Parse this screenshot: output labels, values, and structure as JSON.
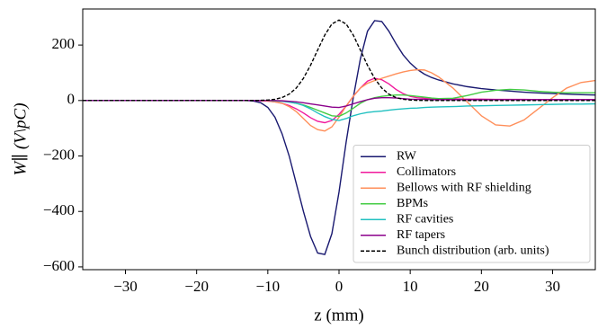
{
  "chart_data": {
    "type": "line",
    "x_label": "z (mm)",
    "y_label": "W∥ (V\\pC)",
    "x": [
      -36,
      -30,
      -20,
      -15,
      -13,
      -12,
      -11,
      -10,
      -9,
      -8,
      -7,
      -6,
      -5,
      -4,
      -3,
      -2,
      -1,
      0,
      1,
      2,
      3,
      4,
      5,
      6,
      7,
      8,
      9,
      10,
      11,
      12,
      13,
      14,
      16,
      18,
      20,
      22,
      24,
      26,
      28,
      30,
      32,
      34,
      36
    ],
    "series": [
      {
        "name": "RW",
        "color": "#191970",
        "values": [
          0,
          0,
          0,
          0,
          0,
          -2,
          -8,
          -25,
          -60,
          -120,
          -200,
          -300,
          -400,
          -490,
          -550,
          -555,
          -480,
          -330,
          -150,
          10,
          150,
          250,
          288,
          285,
          250,
          205,
          165,
          135,
          112,
          95,
          83,
          74,
          60,
          50,
          43,
          38,
          34,
          30,
          27,
          25,
          23,
          21,
          20
        ]
      },
      {
        "name": "Collimators",
        "color": "#f0199c",
        "values": [
          0,
          0,
          0,
          0,
          0,
          0,
          -1,
          -2,
          -5,
          -10,
          -18,
          -30,
          -45,
          -62,
          -75,
          -80,
          -72,
          -50,
          -20,
          15,
          45,
          70,
          80,
          75,
          60,
          40,
          25,
          15,
          10,
          8,
          7,
          7,
          6,
          5,
          5,
          4,
          4,
          4,
          3,
          3,
          3,
          3,
          3
        ]
      },
      {
        "name": "Bellows with RF shielding",
        "color": "#ff8f5a",
        "values": [
          0,
          0,
          0,
          0,
          0,
          0,
          0,
          -2,
          -5,
          -10,
          -22,
          -40,
          -65,
          -90,
          -105,
          -110,
          -95,
          -60,
          -20,
          15,
          45,
          62,
          72,
          80,
          88,
          96,
          103,
          108,
          111,
          110,
          100,
          85,
          45,
          -5,
          -55,
          -88,
          -92,
          -70,
          -30,
          10,
          45,
          65,
          72
        ]
      },
      {
        "name": "BPMs",
        "color": "#44cc44",
        "values": [
          0,
          0,
          0,
          0,
          0,
          0,
          0,
          0,
          -1,
          -3,
          -5,
          -10,
          -16,
          -25,
          -35,
          -45,
          -55,
          -57,
          -45,
          -28,
          -10,
          3,
          10,
          15,
          18,
          20,
          20,
          18,
          15,
          12,
          9,
          7,
          8,
          18,
          30,
          37,
          40,
          38,
          33,
          30,
          28,
          28,
          28
        ]
      },
      {
        "name": "RF cavities",
        "color": "#20c0c0",
        "values": [
          0,
          0,
          0,
          0,
          0,
          0,
          0,
          0,
          -1,
          -3,
          -6,
          -10,
          -18,
          -30,
          -45,
          -58,
          -68,
          -72,
          -65,
          -55,
          -48,
          -43,
          -40,
          -38,
          -35,
          -32,
          -30,
          -28,
          -27,
          -25,
          -24,
          -23,
          -22,
          -20,
          -19,
          -18,
          -17,
          -16,
          -15,
          -14,
          -13,
          -13,
          -12
        ]
      },
      {
        "name": "RF tapers",
        "color": "#8b008b",
        "values": [
          0,
          0,
          0,
          0,
          0,
          0,
          0,
          0,
          0,
          -1,
          -3,
          -5,
          -8,
          -12,
          -16,
          -20,
          -24,
          -25,
          -20,
          -12,
          -4,
          3,
          8,
          10,
          10,
          9,
          7,
          5,
          4,
          4,
          3,
          3,
          3,
          3,
          3,
          3,
          3,
          3,
          3,
          3,
          3,
          3,
          3
        ]
      },
      {
        "name": "Bunch distribution (arb. units)",
        "color": "#000000",
        "linestyle": "dashed",
        "values": [
          0,
          0,
          0,
          0,
          0,
          0.2,
          0.6,
          1.7,
          4.4,
          10.7,
          23,
          45,
          80,
          127,
          182,
          236,
          276,
          290,
          276,
          236,
          182,
          127,
          80,
          45,
          23,
          10.7,
          4.4,
          1.7,
          0.6,
          0.2,
          0,
          0,
          0,
          0,
          0,
          0,
          0,
          0,
          0,
          0,
          0,
          0,
          0
        ]
      }
    ],
    "xlim": [
      -36,
      36
    ],
    "ylim": [
      -610,
      330
    ],
    "xticks": [
      {
        "value": -30,
        "label": "−30"
      },
      {
        "value": -20,
        "label": "−20"
      },
      {
        "value": -10,
        "label": "−10"
      },
      0,
      10,
      20,
      30
    ],
    "yticks": [
      {
        "value": -600,
        "label": "−600"
      },
      {
        "value": -400,
        "label": "−400"
      },
      {
        "value": -200,
        "label": "−200"
      },
      0,
      200
    ],
    "grid": false,
    "legend": "lower right"
  }
}
